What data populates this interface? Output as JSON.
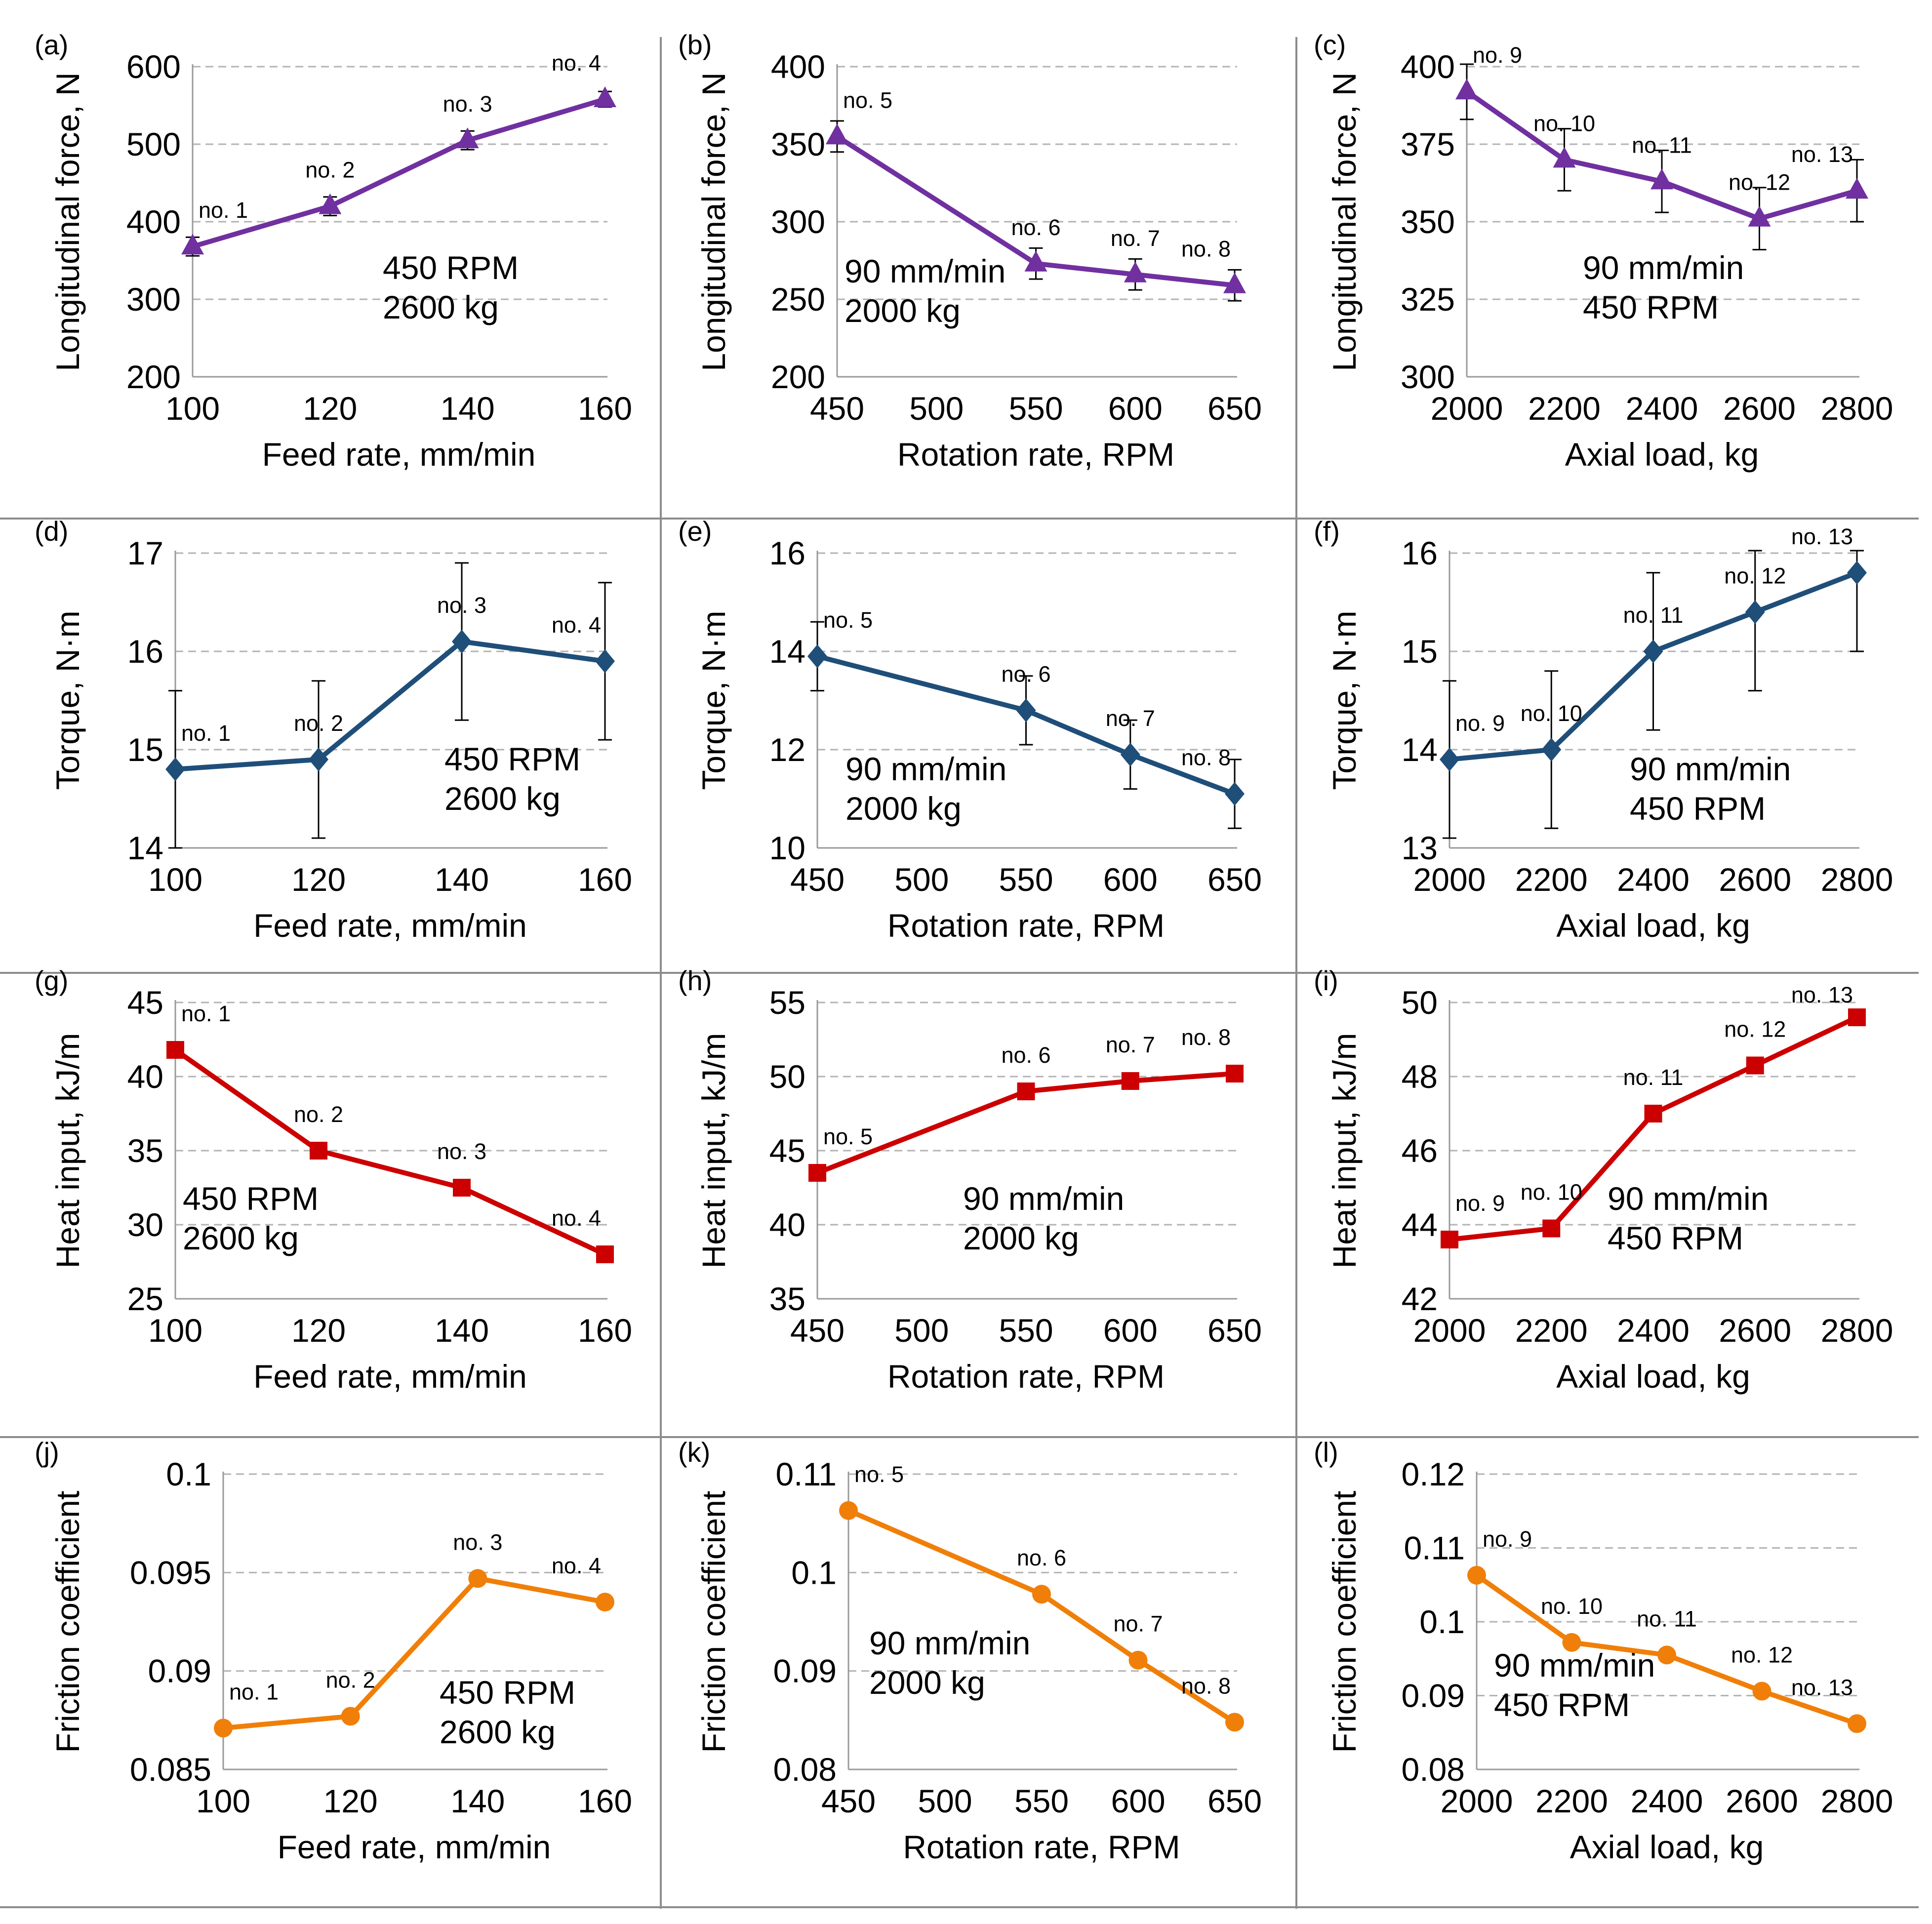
{
  "chart_data": [
    {
      "id": "a",
      "type": "line",
      "panel_label": "(a)",
      "ylabel": "Longitudinal force, N",
      "xlabel": "Feed rate, mm/min",
      "x": [
        100,
        120,
        140,
        160
      ],
      "y": [
        368,
        420,
        505,
        558
      ],
      "err": [
        12,
        12,
        12,
        10
      ],
      "point_labels": [
        "no. 1",
        "no. 2",
        "no. 3",
        "no. 4"
      ],
      "xlim": [
        100,
        160
      ],
      "xticks": [
        "100",
        "120",
        "140",
        "160"
      ],
      "ylim": [
        200,
        600
      ],
      "yticks": [
        "200",
        "300",
        "400",
        "500",
        "600"
      ],
      "conditions": [
        "450 RPM",
        "2600 kg"
      ],
      "marker": "triangle",
      "color": "#7030a0"
    },
    {
      "id": "b",
      "type": "line",
      "panel_label": "(b)",
      "ylabel": "Longitudinal force, N",
      "xlabel": "Rotation rate, RPM",
      "x": [
        450,
        550,
        600,
        650
      ],
      "y": [
        355,
        273,
        266,
        259
      ],
      "err": [
        10,
        10,
        10,
        10
      ],
      "point_labels": [
        "no. 5",
        "no. 6",
        "no. 7",
        "no. 8"
      ],
      "xlim": [
        450,
        650
      ],
      "xticks": [
        "450",
        "500",
        "550",
        "600",
        "650"
      ],
      "ylim": [
        200,
        400
      ],
      "yticks": [
        "200",
        "250",
        "300",
        "350",
        "400"
      ],
      "conditions": [
        "90 mm/min",
        "2000 kg"
      ],
      "marker": "triangle",
      "color": "#7030a0"
    },
    {
      "id": "c",
      "type": "line",
      "panel_label": "(c)",
      "ylabel": "Longitudinal force, N",
      "xlabel": "Axial load, kg",
      "x": [
        2000,
        2200,
        2400,
        2600,
        2800
      ],
      "y": [
        392,
        370,
        363,
        351,
        360
      ],
      "err": [
        9,
        10,
        10,
        10,
        10
      ],
      "point_labels": [
        "no. 9",
        "no. 10",
        "no. 11",
        "no. 12",
        "no. 13"
      ],
      "xlim": [
        2000,
        2800
      ],
      "xticks": [
        "2000",
        "2200",
        "2400",
        "2600",
        "2800"
      ],
      "ylim": [
        300,
        400
      ],
      "yticks": [
        "300",
        "325",
        "350",
        "375",
        "400"
      ],
      "conditions": [
        "90 mm/min",
        "450 RPM"
      ],
      "marker": "triangle",
      "color": "#7030a0"
    },
    {
      "id": "d",
      "type": "line",
      "panel_label": "(d)",
      "ylabel": "Torque, N·m",
      "xlabel": "Feed rate, mm/min",
      "x": [
        100,
        120,
        140,
        160
      ],
      "y": [
        14.8,
        14.9,
        16.1,
        15.9
      ],
      "err": [
        0.8,
        0.8,
        0.8,
        0.8
      ],
      "point_labels": [
        "no. 1",
        "no. 2",
        "no. 3",
        "no. 4"
      ],
      "xlim": [
        100,
        160
      ],
      "xticks": [
        "100",
        "120",
        "140",
        "160"
      ],
      "ylim": [
        14,
        17
      ],
      "yticks": [
        "14",
        "15",
        "16",
        "17"
      ],
      "conditions": [
        "450 RPM",
        "2600 kg"
      ],
      "marker": "diamond",
      "color": "#1f4e79"
    },
    {
      "id": "e",
      "type": "line",
      "panel_label": "(e)",
      "ylabel": "Torque, N·m",
      "xlabel": "Rotation rate, RPM",
      "x": [
        450,
        550,
        600,
        650
      ],
      "y": [
        13.9,
        12.8,
        11.9,
        11.1
      ],
      "err": [
        0.7,
        0.7,
        0.7,
        0.7
      ],
      "point_labels": [
        "no. 5",
        "no. 6",
        "no. 7",
        "no. 8"
      ],
      "xlim": [
        450,
        650
      ],
      "xticks": [
        "450",
        "500",
        "550",
        "600",
        "650"
      ],
      "ylim": [
        10,
        16
      ],
      "yticks": [
        "10",
        "12",
        "14",
        "16"
      ],
      "conditions": [
        "90 mm/min",
        "2000 kg"
      ],
      "marker": "diamond",
      "color": "#1f4e79"
    },
    {
      "id": "f",
      "type": "line",
      "panel_label": "(f)",
      "ylabel": "Torque, N·m",
      "xlabel": "Axial load, kg",
      "x": [
        2000,
        2200,
        2400,
        2600,
        2800
      ],
      "y": [
        13.9,
        14.0,
        15.0,
        15.4,
        15.8
      ],
      "err": [
        0.8,
        0.8,
        0.8,
        0.8,
        0.8
      ],
      "point_labels": [
        "no. 9",
        "no. 10",
        "no. 11",
        "no. 12",
        "no. 13"
      ],
      "xlim": [
        2000,
        2800
      ],
      "xticks": [
        "2000",
        "2200",
        "2400",
        "2600",
        "2800"
      ],
      "ylim": [
        13,
        16
      ],
      "yticks": [
        "13",
        "14",
        "15",
        "16"
      ],
      "conditions": [
        "90 mm/min",
        "450 RPM"
      ],
      "marker": "diamond",
      "color": "#1f4e79"
    },
    {
      "id": "g",
      "type": "line",
      "panel_label": "(g)",
      "ylabel": "Heat input, kJ/m",
      "xlabel": "Feed rate, mm/min",
      "x": [
        100,
        120,
        140,
        160
      ],
      "y": [
        41.8,
        35.0,
        32.5,
        28.0
      ],
      "point_labels": [
        "no. 1",
        "no. 2",
        "no. 3",
        "no. 4"
      ],
      "xlim": [
        100,
        160
      ],
      "xticks": [
        "100",
        "120",
        "140",
        "160"
      ],
      "ylim": [
        25,
        45
      ],
      "yticks": [
        "25",
        "30",
        "35",
        "40",
        "45"
      ],
      "conditions": [
        "450 RPM",
        "2600 kg"
      ],
      "marker": "square",
      "color": "#cc0000"
    },
    {
      "id": "h",
      "type": "line",
      "panel_label": "(h)",
      "ylabel": "Heat input, kJ/m",
      "xlabel": "Rotation rate, RPM",
      "x": [
        450,
        550,
        600,
        650
      ],
      "y": [
        43.5,
        49.0,
        49.7,
        50.2
      ],
      "point_labels": [
        "no. 5",
        "no. 6",
        "no. 7",
        "no. 8"
      ],
      "xlim": [
        450,
        650
      ],
      "xticks": [
        "450",
        "500",
        "550",
        "600",
        "650"
      ],
      "ylim": [
        35,
        55
      ],
      "yticks": [
        "35",
        "40",
        "45",
        "50",
        "55"
      ],
      "conditions": [
        "90 mm/min",
        "2000 kg"
      ],
      "marker": "square",
      "color": "#cc0000"
    },
    {
      "id": "i",
      "type": "line",
      "panel_label": "(i)",
      "ylabel": "Heat input, kJ/m",
      "xlabel": "Axial load, kg",
      "x": [
        2000,
        2200,
        2400,
        2600,
        2800
      ],
      "y": [
        43.6,
        43.9,
        47.0,
        48.3,
        49.6
      ],
      "point_labels": [
        "no. 9",
        "no. 10",
        "no. 11",
        "no. 12",
        "no. 13"
      ],
      "xlim": [
        2000,
        2800
      ],
      "xticks": [
        "2000",
        "2200",
        "2400",
        "2600",
        "2800"
      ],
      "ylim": [
        42,
        50
      ],
      "yticks": [
        "42",
        "44",
        "46",
        "48",
        "50"
      ],
      "conditions": [
        "90 mm/min",
        "450 RPM"
      ],
      "marker": "square",
      "color": "#cc0000"
    },
    {
      "id": "j",
      "type": "line",
      "panel_label": "(j)",
      "ylabel": "Friction coefficient",
      "xlabel": "Feed rate, mm/min",
      "x": [
        100,
        120,
        140,
        160
      ],
      "y": [
        0.0871,
        0.0877,
        0.0947,
        0.0935
      ],
      "point_labels": [
        "no. 1",
        "no. 2",
        "no. 3",
        "no. 4"
      ],
      "xlim": [
        100,
        160
      ],
      "xticks": [
        "100",
        "120",
        "140",
        "160"
      ],
      "ylim": [
        0.085,
        0.1
      ],
      "yticks": [
        "0.085",
        "0.09",
        "0.095",
        "0.1"
      ],
      "conditions": [
        "450 RPM",
        "2600 kg"
      ],
      "marker": "circle",
      "color": "#f07f09"
    },
    {
      "id": "k",
      "type": "line",
      "panel_label": "(k)",
      "ylabel": "Friction coefficient",
      "xlabel": "Rotation rate, RPM",
      "x": [
        450,
        550,
        600,
        650
      ],
      "y": [
        0.1063,
        0.0978,
        0.0911,
        0.0848
      ],
      "point_labels": [
        "no. 5",
        "no. 6",
        "no. 7",
        "no. 8"
      ],
      "xlim": [
        450,
        650
      ],
      "xticks": [
        "450",
        "500",
        "550",
        "600",
        "650"
      ],
      "ylim": [
        0.08,
        0.11
      ],
      "yticks": [
        "0.08",
        "0.09",
        "0.1",
        "0.11"
      ],
      "conditions": [
        "90 mm/min",
        "2000 kg"
      ],
      "marker": "circle",
      "color": "#f07f09"
    },
    {
      "id": "l",
      "type": "line",
      "panel_label": "(l)",
      "ylabel": "Friction coefficient",
      "xlabel": "Axial load, kg",
      "x": [
        2000,
        2200,
        2400,
        2600,
        2800
      ],
      "y": [
        0.1063,
        0.0972,
        0.0955,
        0.0906,
        0.0862
      ],
      "point_labels": [
        "no. 9",
        "no. 10",
        "no. 11",
        "no. 12",
        "no. 13"
      ],
      "xlim": [
        2000,
        2800
      ],
      "xticks": [
        "2000",
        "2200",
        "2400",
        "2600",
        "2800"
      ],
      "ylim": [
        0.08,
        0.12
      ],
      "yticks": [
        "0.08",
        "0.09",
        "0.1",
        "0.11",
        "0.12"
      ],
      "conditions": [
        "90 mm/min",
        "450 RPM"
      ],
      "marker": "circle",
      "color": "#f07f09"
    }
  ]
}
